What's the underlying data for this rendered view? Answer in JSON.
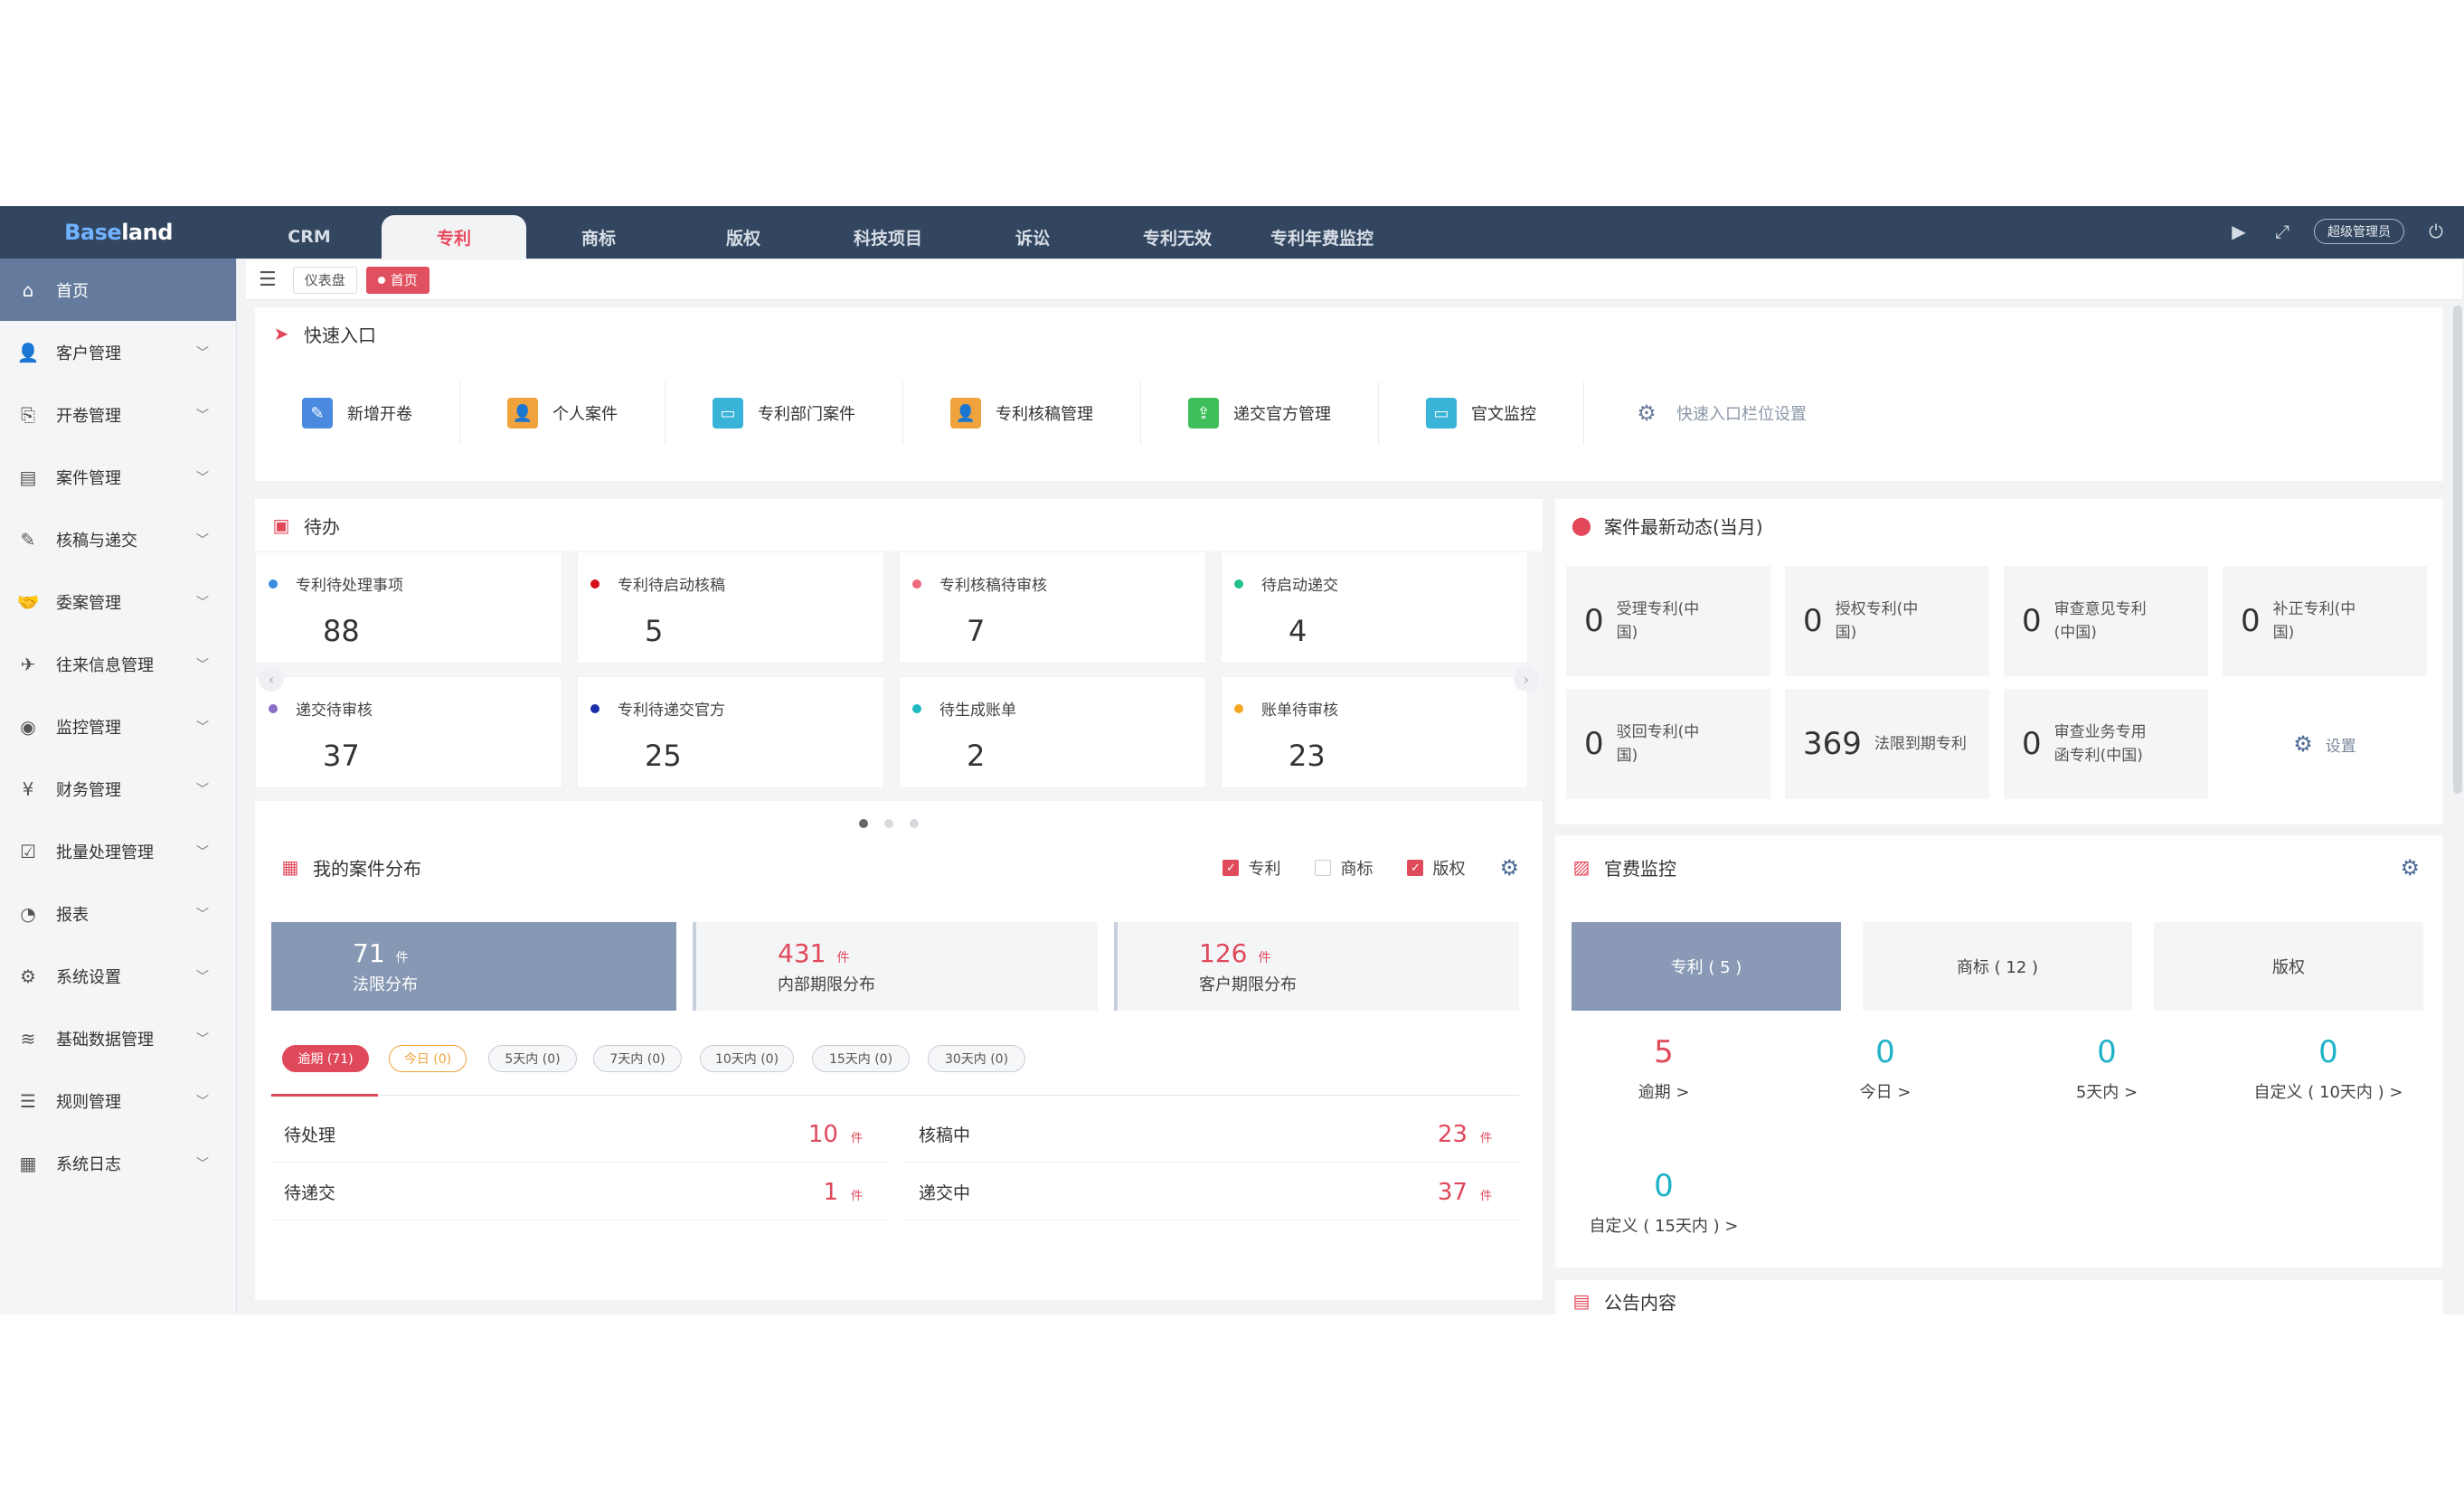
{
  "app": {
    "logo_a": "Base",
    "logo_b": "land"
  },
  "top_tabs": [
    "CRM",
    "专利",
    "商标",
    "版权",
    "科技项目",
    "诉讼",
    "专利无效",
    "专利年费监控"
  ],
  "user": "超级管理员",
  "sidebar": [
    {
      "label": "首页",
      "icon": "home-icon"
    },
    {
      "label": "客户管理",
      "icon": "user-icon"
    },
    {
      "label": "开卷管理",
      "icon": "folder-icon"
    },
    {
      "label": "案件管理",
      "icon": "case-icon"
    },
    {
      "label": "核稿与递交",
      "icon": "edit-icon"
    },
    {
      "label": "委案管理",
      "icon": "handshake-icon"
    },
    {
      "label": "往来信息管理",
      "icon": "send-icon"
    },
    {
      "label": "监控管理",
      "icon": "monitor-icon"
    },
    {
      "label": "财务管理",
      "icon": "finance-icon"
    },
    {
      "label": "批量处理管理",
      "icon": "batch-icon"
    },
    {
      "label": "报表",
      "icon": "chart-icon"
    },
    {
      "label": "系统设置",
      "icon": "settings-icon"
    },
    {
      "label": "基础数据管理",
      "icon": "layers-icon"
    },
    {
      "label": "规则管理",
      "icon": "sliders-icon"
    },
    {
      "label": "系统日志",
      "icon": "log-icon"
    }
  ],
  "breadcrumbs": [
    "仪表盘",
    "首页"
  ],
  "quick": {
    "title": "快速入口",
    "items": [
      "新增开卷",
      "个人案件",
      "专利部门案件",
      "专利核稿管理",
      "递交官方管理",
      "官文监控",
      "快速入口栏位设置"
    ]
  },
  "todo": {
    "title": "待办",
    "items": [
      {
        "label": "专利待处理事项",
        "value": "88",
        "color": "#3b8de0"
      },
      {
        "label": "专利待启动核稿",
        "value": "5",
        "color": "#d40f1a"
      },
      {
        "label": "专利核稿待审核",
        "value": "7",
        "color": "#f06a7a"
      },
      {
        "label": "待启动递交",
        "value": "4",
        "color": "#1fbf8f"
      },
      {
        "label": "递交待审核",
        "value": "37",
        "color": "#8a6fc7"
      },
      {
        "label": "专利待递交官方",
        "value": "25",
        "color": "#1a2fa8"
      },
      {
        "label": "待生成账单",
        "value": "2",
        "color": "#1fb9c4"
      },
      {
        "label": "账单待审核",
        "value": "23",
        "color": "#f5a623"
      }
    ]
  },
  "dynamics": {
    "title": "案件最新动态(当月)",
    "items": [
      {
        "value": "0",
        "label": "受理专利(中国)"
      },
      {
        "value": "0",
        "label": "授权专利(中国)"
      },
      {
        "value": "0",
        "label": "审查意见专利(中国)"
      },
      {
        "value": "0",
        "label": "补正专利(中国)"
      },
      {
        "value": "0",
        "label": "驳回专利(中国)"
      },
      {
        "value": "369",
        "label": "法限到期专利"
      },
      {
        "value": "0",
        "label": "审查业务专用函专利(中国)"
      }
    ],
    "settings_label": "设置"
  },
  "distribution": {
    "title": "我的案件分布",
    "checks": [
      {
        "label": "专利",
        "checked": true
      },
      {
        "label": "商标",
        "checked": false
      },
      {
        "label": "版权",
        "checked": true
      }
    ],
    "boxes": [
      {
        "value": "71",
        "unit": "件",
        "label": "法限分布"
      },
      {
        "value": "431",
        "unit": "件",
        "label": "内部期限分布"
      },
      {
        "value": "126",
        "unit": "件",
        "label": "客户期限分布"
      }
    ],
    "filters": [
      "逾期 (71)",
      "今日 (0)",
      "5天内 (0)",
      "7天内 (0)",
      "10天内 (0)",
      "15天内 (0)",
      "30天内 (0)"
    ],
    "rows": [
      {
        "label": "待处理",
        "value": "10",
        "unit": "件"
      },
      {
        "label": "核稿中",
        "value": "23",
        "unit": "件"
      },
      {
        "label": "待递交",
        "value": "1",
        "unit": "件"
      },
      {
        "label": "递交中",
        "value": "37",
        "unit": "件"
      }
    ]
  },
  "fee": {
    "title": "官费监控",
    "tabs": [
      "专利 ( 5 )",
      "商标 ( 12 )",
      "版权"
    ],
    "stats": [
      {
        "value": "5",
        "label": "逾期 >"
      },
      {
        "value": "0",
        "label": "今日 >"
      },
      {
        "value": "0",
        "label": "5天内 >"
      },
      {
        "value": "0",
        "label": "自定义 ( 10天内 ) >"
      },
      {
        "value": "0",
        "label": "自定义 ( 15天内 ) >"
      }
    ]
  },
  "notice": {
    "title": "公告内容"
  }
}
